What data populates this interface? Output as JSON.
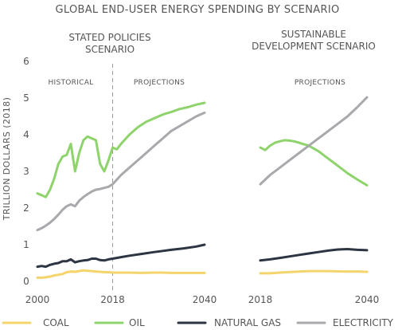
{
  "chart_data": {
    "type": "line",
    "title": "GLOBAL END-USER ENERGY SPENDING BY SCENARIO",
    "ylabel": "TRILLION DOLLARS (2018)",
    "ylim": [
      0,
      6
    ],
    "yticks": [
      "0",
      "1",
      "2",
      "3",
      "4",
      "5",
      "6"
    ],
    "colors": {
      "COAL": "#f5d46b",
      "OIL": "#8fd36c",
      "NATURAL GAS": "#2d3442",
      "ELECTRICITY": "#a7a9ad"
    },
    "legend": [
      "COAL",
      "OIL",
      "NATURAL GAS",
      "ELECTRICITY"
    ],
    "panels": [
      {
        "heading": [
          "STATED POLICIES",
          "SCENARIO"
        ],
        "xticks": [
          "2000",
          "2018",
          "2040"
        ],
        "xlim": [
          2000,
          2040
        ],
        "region_labels": [
          "HISTORICAL",
          "PROJECTIONS"
        ],
        "divider_x": 2018,
        "series": [
          {
            "name": "COAL",
            "x": [
              2000,
              2001,
              2002,
              2003,
              2004,
              2005,
              2006,
              2007,
              2008,
              2009,
              2010,
              2011,
              2012,
              2013,
              2014,
              2015,
              2016,
              2017,
              2018,
              2020,
              2022,
              2025,
              2028,
              2030,
              2032,
              2035,
              2038,
              2040
            ],
            "values": [
              0.1,
              0.1,
              0.11,
              0.13,
              0.16,
              0.18,
              0.2,
              0.25,
              0.27,
              0.26,
              0.28,
              0.3,
              0.29,
              0.28,
              0.27,
              0.26,
              0.25,
              0.25,
              0.24,
              0.24,
              0.24,
              0.23,
              0.24,
              0.24,
              0.23,
              0.23,
              0.23,
              0.23
            ]
          },
          {
            "name": "OIL",
            "x": [
              2000,
              2001,
              2002,
              2003,
              2004,
              2005,
              2006,
              2007,
              2008,
              2009,
              2010,
              2011,
              2012,
              2013,
              2014,
              2015,
              2016,
              2017,
              2018,
              2019,
              2020,
              2022,
              2024,
              2026,
              2028,
              2030,
              2032,
              2034,
              2036,
              2038,
              2040
            ],
            "values": [
              2.4,
              2.35,
              2.3,
              2.5,
              2.8,
              3.2,
              3.4,
              3.45,
              3.75,
              3.0,
              3.5,
              3.85,
              3.95,
              3.9,
              3.85,
              3.2,
              3.0,
              3.3,
              3.65,
              3.6,
              3.75,
              4.0,
              4.2,
              4.35,
              4.45,
              4.55,
              4.62,
              4.7,
              4.75,
              4.82,
              4.87
            ]
          },
          {
            "name": "NATURAL GAS",
            "x": [
              2000,
              2001,
              2002,
              2003,
              2004,
              2005,
              2006,
              2007,
              2008,
              2009,
              2010,
              2011,
              2012,
              2013,
              2014,
              2015,
              2016,
              2017,
              2018,
              2020,
              2022,
              2025,
              2028,
              2030,
              2032,
              2035,
              2038,
              2040
            ],
            "values": [
              0.4,
              0.42,
              0.4,
              0.45,
              0.48,
              0.5,
              0.55,
              0.55,
              0.6,
              0.52,
              0.55,
              0.57,
              0.58,
              0.62,
              0.62,
              0.58,
              0.57,
              0.6,
              0.62,
              0.66,
              0.7,
              0.75,
              0.8,
              0.83,
              0.86,
              0.9,
              0.95,
              1.0
            ]
          },
          {
            "name": "ELECTRICITY",
            "x": [
              2000,
              2001,
              2002,
              2003,
              2004,
              2005,
              2006,
              2007,
              2008,
              2009,
              2010,
              2011,
              2012,
              2013,
              2014,
              2015,
              2016,
              2017,
              2018,
              2020,
              2022,
              2025,
              2028,
              2030,
              2032,
              2035,
              2038,
              2040
            ],
            "values": [
              1.4,
              1.45,
              1.52,
              1.6,
              1.7,
              1.82,
              1.95,
              2.05,
              2.1,
              2.05,
              2.2,
              2.3,
              2.38,
              2.45,
              2.5,
              2.52,
              2.55,
              2.58,
              2.65,
              2.9,
              3.1,
              3.4,
              3.7,
              3.9,
              4.1,
              4.3,
              4.5,
              4.6
            ]
          }
        ]
      },
      {
        "heading": [
          "SUSTAINABLE",
          "DEVELOPMENT SCENARIO"
        ],
        "xticks": [
          "2018",
          "2040"
        ],
        "xlim": [
          2018,
          2040
        ],
        "region_labels": [
          "PROJECTIONS"
        ],
        "series": [
          {
            "name": "COAL",
            "x": [
              2018,
              2020,
              2022,
              2025,
              2028,
              2030,
              2032,
              2035,
              2038,
              2040
            ],
            "values": [
              0.22,
              0.22,
              0.24,
              0.26,
              0.28,
              0.28,
              0.28,
              0.27,
              0.27,
              0.26
            ]
          },
          {
            "name": "OIL",
            "x": [
              2018,
              2019,
              2020,
              2021,
              2022,
              2023,
              2024,
              2025,
              2026,
              2028,
              2030,
              2032,
              2034,
              2036,
              2038,
              2040
            ],
            "values": [
              3.65,
              3.58,
              3.7,
              3.78,
              3.82,
              3.85,
              3.84,
              3.82,
              3.78,
              3.7,
              3.55,
              3.35,
              3.15,
              2.95,
              2.78,
              2.62
            ]
          },
          {
            "name": "NATURAL GAS",
            "x": [
              2018,
              2020,
              2022,
              2025,
              2028,
              2030,
              2032,
              2034,
              2036,
              2038,
              2040
            ],
            "values": [
              0.57,
              0.6,
              0.64,
              0.7,
              0.76,
              0.8,
              0.84,
              0.87,
              0.88,
              0.86,
              0.85
            ]
          },
          {
            "name": "ELECTRICITY",
            "x": [
              2018,
              2020,
              2022,
              2024,
              2026,
              2028,
              2030,
              2032,
              2034,
              2036,
              2038,
              2040
            ],
            "values": [
              2.65,
              2.9,
              3.1,
              3.3,
              3.5,
              3.7,
              3.9,
              4.1,
              4.3,
              4.5,
              4.75,
              5.02
            ]
          }
        ]
      }
    ]
  }
}
